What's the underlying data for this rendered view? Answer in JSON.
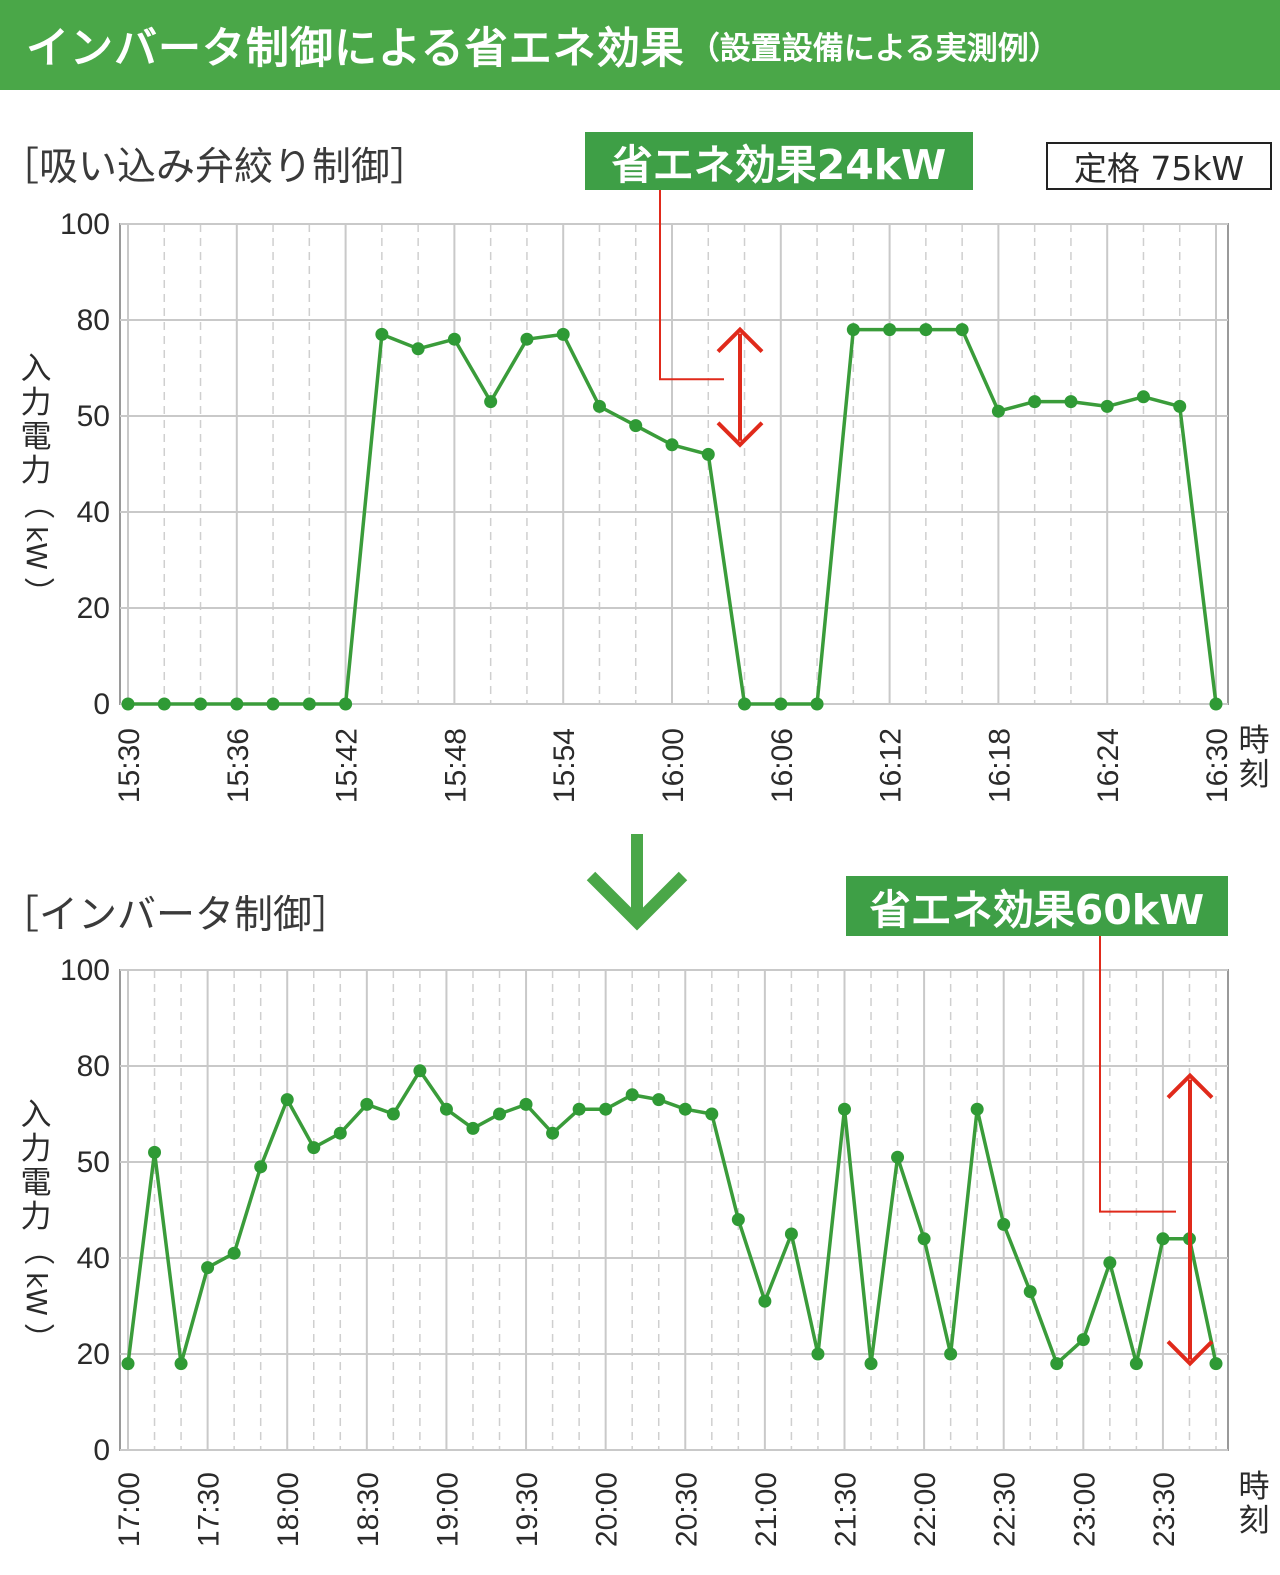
{
  "header": {
    "title": "インバータ制御による省エネ効果",
    "subtitle": "（設置設備による実測例）"
  },
  "rated": "定格 75kW",
  "arrow_color": "#4aa748",
  "colors": {
    "line": "#3a9c3a",
    "marker": "#2f9a35",
    "annotation": "#e02a1b",
    "accent": "#4aa748"
  },
  "y_axis_label_chars": [
    "入",
    "力",
    "電",
    "力"
  ],
  "y_axis_unit_paren": [
    "（",
    "kW",
    "）"
  ],
  "x_axis_unit_chars": [
    "時",
    "刻"
  ],
  "chart_data": [
    {
      "type": "line",
      "section_label": "［吸い込み弁絞り制御］",
      "savings_label": "省エネ効果24kW",
      "ylim": [
        0,
        100
      ],
      "y_ticks": [
        "0",
        "20",
        "40",
        "50",
        "80",
        "100"
      ],
      "x_ticks": [
        "15:30",
        "15:36",
        "15:42",
        "15:48",
        "15:54",
        "16:00",
        "16:06",
        "16:12",
        "16:18",
        "16:24",
        "16:30"
      ],
      "xlim": [
        "15:30",
        "16:30"
      ],
      "grid": true,
      "series": [
        {
          "x": [
            "15:30",
            "15:32",
            "15:34",
            "15:36",
            "15:38",
            "15:40",
            "15:42",
            "15:44",
            "15:46",
            "15:48",
            "15:50",
            "15:52",
            "15:54",
            "15:56",
            "15:58",
            "16:00",
            "16:02",
            "16:04",
            "16:06",
            "16:08",
            "16:10",
            "16:12",
            "16:14",
            "16:16",
            "16:18",
            "16:20",
            "16:22",
            "16:24",
            "16:26",
            "16:28",
            "16:30"
          ],
          "y": [
            0,
            0,
            0,
            0,
            0,
            0,
            0,
            77,
            74,
            76,
            63,
            76,
            77,
            62,
            58,
            54,
            52,
            0,
            0,
            0,
            78,
            78,
            78,
            78,
            61,
            63,
            63,
            62,
            64,
            62,
            0
          ]
        }
      ]
    },
    {
      "type": "line",
      "section_label": "［インバータ制御］",
      "savings_label": "省エネ効果60kW",
      "ylim": [
        0,
        100
      ],
      "y_ticks": [
        "0",
        "20",
        "40",
        "50",
        "80",
        "100"
      ],
      "x_ticks": [
        "17:00",
        "17:30",
        "18:00",
        "18:30",
        "19:00",
        "19:30",
        "20:00",
        "20:30",
        "21:00",
        "21:30",
        "22:00",
        "22:30",
        "23:00",
        "23:30"
      ],
      "xlim": [
        "17:00",
        "23:50"
      ],
      "grid": true,
      "series": [
        {
          "x": [
            "17:00",
            "17:10",
            "17:20",
            "17:30",
            "17:40",
            "17:50",
            "18:00",
            "18:10",
            "18:20",
            "18:30",
            "18:40",
            "18:50",
            "19:00",
            "19:10",
            "19:20",
            "19:30",
            "19:40",
            "19:50",
            "20:00",
            "20:10",
            "20:20",
            "20:30",
            "20:40",
            "20:50",
            "21:00",
            "21:10",
            "21:20",
            "21:30",
            "21:40",
            "21:50",
            "22:00",
            "22:10",
            "22:20",
            "22:30",
            "22:40",
            "22:50",
            "23:00",
            "23:10",
            "23:20",
            "23:30",
            "23:40",
            "23:50"
          ],
          "y": [
            18,
            62,
            18,
            38,
            41,
            59,
            73,
            63,
            66,
            72,
            70,
            79,
            71,
            67,
            70,
            72,
            66,
            71,
            71,
            74,
            73,
            71,
            70,
            48,
            31,
            45,
            20,
            71,
            18,
            61,
            44,
            20,
            71,
            47,
            33,
            18,
            23,
            39,
            18,
            44,
            44,
            18
          ]
        }
      ]
    }
  ]
}
